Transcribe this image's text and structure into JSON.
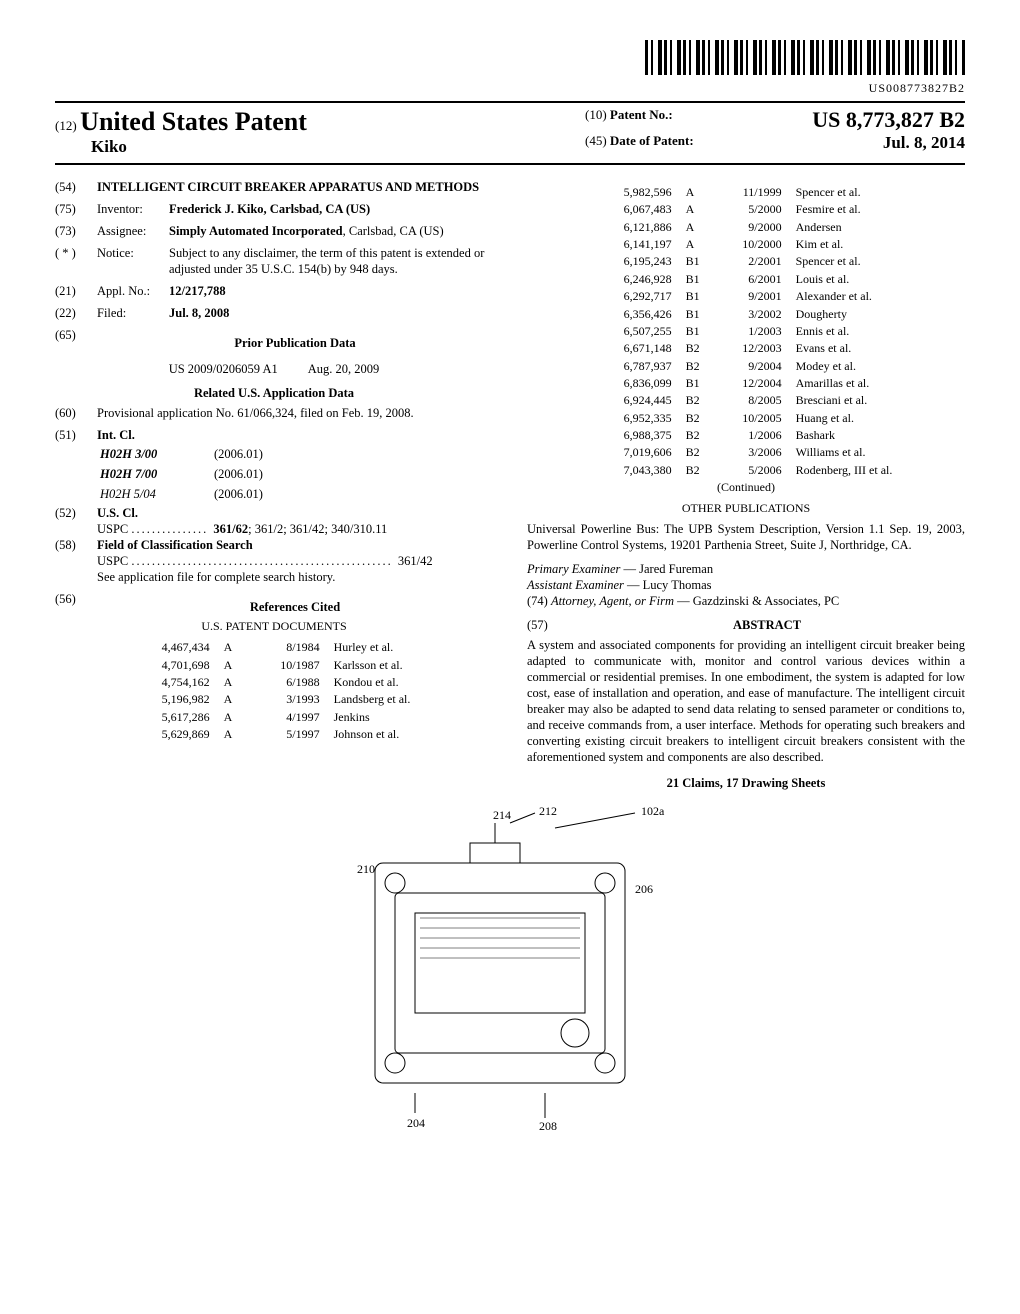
{
  "barcode_number": "US008773827B2",
  "header": {
    "num12": "(12)",
    "country": "United States Patent",
    "author": "Kiko",
    "num10": "(10)",
    "patent_no_label": "Patent No.:",
    "patent_no": "US 8,773,827 B2",
    "num45": "(45)",
    "date_label": "Date of Patent:",
    "date": "Jul. 8, 2014"
  },
  "left": {
    "f54": {
      "n": "(54)",
      "title": "INTELLIGENT CIRCUIT BREAKER APPARATUS AND METHODS"
    },
    "f75": {
      "n": "(75)",
      "label": "Inventor:",
      "val": "Frederick J. Kiko, Carlsbad, CA (US)"
    },
    "f73": {
      "n": "(73)",
      "label": "Assignee:",
      "val": "Simply Automated Incorporated, Carlsbad, CA (US)"
    },
    "fstar": {
      "n": "( * )",
      "label": "Notice:",
      "val": "Subject to any disclaimer, the term of this patent is extended or adjusted under 35 U.S.C. 154(b) by 948 days."
    },
    "f21": {
      "n": "(21)",
      "label": "Appl. No.:",
      "val": "12/217,788"
    },
    "f22": {
      "n": "(22)",
      "label": "Filed:",
      "val": "Jul. 8, 2008"
    },
    "f65": {
      "n": "(65)",
      "title": "Prior Publication Data",
      "pub": "US 2009/0206059 A1",
      "pubdate": "Aug. 20, 2009"
    },
    "related_title": "Related U.S. Application Data",
    "f60": {
      "n": "(60)",
      "val": "Provisional application No. 61/066,324, filed on Feb. 19, 2008."
    },
    "f51": {
      "n": "(51)",
      "label": "Int. Cl.",
      "rows": [
        {
          "code": "H02H 3/00",
          "yr": "(2006.01)",
          "bold": true
        },
        {
          "code": "H02H 7/00",
          "yr": "(2006.01)",
          "bold": true
        },
        {
          "code": "H02H 5/04",
          "yr": "(2006.01)",
          "bold": false
        }
      ]
    },
    "f52": {
      "n": "(52)",
      "label": "U.S. Cl.",
      "uspc_label": "USPC",
      "uspc": "361/62; 361/2; 361/42; 340/310.11"
    },
    "f58": {
      "n": "(58)",
      "label": "Field of Classification Search",
      "uspc_label": "USPC",
      "uspc": "361/42",
      "note": "See application file for complete search history."
    },
    "f56": {
      "n": "(56)",
      "title": "References Cited",
      "subtitle": "U.S. PATENT DOCUMENTS"
    },
    "refs_left": [
      {
        "num": "4,467,434",
        "t": "A",
        "d": "8/1984",
        "name": "Hurley et al."
      },
      {
        "num": "4,701,698",
        "t": "A",
        "d": "10/1987",
        "name": "Karlsson et al."
      },
      {
        "num": "4,754,162",
        "t": "A",
        "d": "6/1988",
        "name": "Kondou et al."
      },
      {
        "num": "5,196,982",
        "t": "A",
        "d": "3/1993",
        "name": "Landsberg et al."
      },
      {
        "num": "5,617,286",
        "t": "A",
        "d": "4/1997",
        "name": "Jenkins"
      },
      {
        "num": "5,629,869",
        "t": "A",
        "d": "5/1997",
        "name": "Johnson et al."
      }
    ]
  },
  "right": {
    "refs": [
      {
        "num": "5,982,596",
        "t": "A",
        "d": "11/1999",
        "name": "Spencer et al."
      },
      {
        "num": "6,067,483",
        "t": "A",
        "d": "5/2000",
        "name": "Fesmire et al."
      },
      {
        "num": "6,121,886",
        "t": "A",
        "d": "9/2000",
        "name": "Andersen"
      },
      {
        "num": "6,141,197",
        "t": "A",
        "d": "10/2000",
        "name": "Kim et al."
      },
      {
        "num": "6,195,243",
        "t": "B1",
        "d": "2/2001",
        "name": "Spencer et al."
      },
      {
        "num": "6,246,928",
        "t": "B1",
        "d": "6/2001",
        "name": "Louis et al."
      },
      {
        "num": "6,292,717",
        "t": "B1",
        "d": "9/2001",
        "name": "Alexander et al."
      },
      {
        "num": "6,356,426",
        "t": "B1",
        "d": "3/2002",
        "name": "Dougherty"
      },
      {
        "num": "6,507,255",
        "t": "B1",
        "d": "1/2003",
        "name": "Ennis et al."
      },
      {
        "num": "6,671,148",
        "t": "B2",
        "d": "12/2003",
        "name": "Evans et al."
      },
      {
        "num": "6,787,937",
        "t": "B2",
        "d": "9/2004",
        "name": "Modey et al."
      },
      {
        "num": "6,836,099",
        "t": "B1",
        "d": "12/2004",
        "name": "Amarillas et al."
      },
      {
        "num": "6,924,445",
        "t": "B2",
        "d": "8/2005",
        "name": "Bresciani et al."
      },
      {
        "num": "6,952,335",
        "t": "B2",
        "d": "10/2005",
        "name": "Huang et al."
      },
      {
        "num": "6,988,375",
        "t": "B2",
        "d": "1/2006",
        "name": "Bashark"
      },
      {
        "num": "7,019,606",
        "t": "B2",
        "d": "3/2006",
        "name": "Williams et al."
      },
      {
        "num": "7,043,380",
        "t": "B2",
        "d": "5/2006",
        "name": "Rodenberg, III et al."
      }
    ],
    "continued": "(Continued)",
    "other_title": "OTHER PUBLICATIONS",
    "other_text": "Universal Powerline Bus: The UPB System Description, Version 1.1 Sep. 19, 2003, Powerline Control Systems, 19201 Parthenia Street, Suite J, Northridge, CA.",
    "primary_label": "Primary Examiner",
    "primary": "Jared Fureman",
    "assistant_label": "Assistant Examiner",
    "assistant": "Lucy Thomas",
    "attorney_n": "(74)",
    "attorney_label": "Attorney, Agent, or Firm",
    "attorney": "Gazdzinski & Associates, PC",
    "abs_n": "(57)",
    "abs_title": "ABSTRACT",
    "abstract": "A system and associated components for providing an intelligent circuit breaker being adapted to communicate with, monitor and control various devices within a commercial or residential premises. In one embodiment, the system is adapted for low cost, ease of installation and operation, and ease of manufacture. The intelligent circuit breaker may also be adapted to send data relating to sensed parameter or conditions to, and receive commands from, a user interface. Methods for operating such breakers and converting existing circuit breakers to intelligent circuit breakers consistent with the aforementioned system and components are also described.",
    "claims": "21 Claims, 17 Drawing Sheets"
  },
  "figure": {
    "labels": [
      "214",
      "212",
      "102a",
      "210",
      "206",
      "204",
      "208"
    ]
  }
}
